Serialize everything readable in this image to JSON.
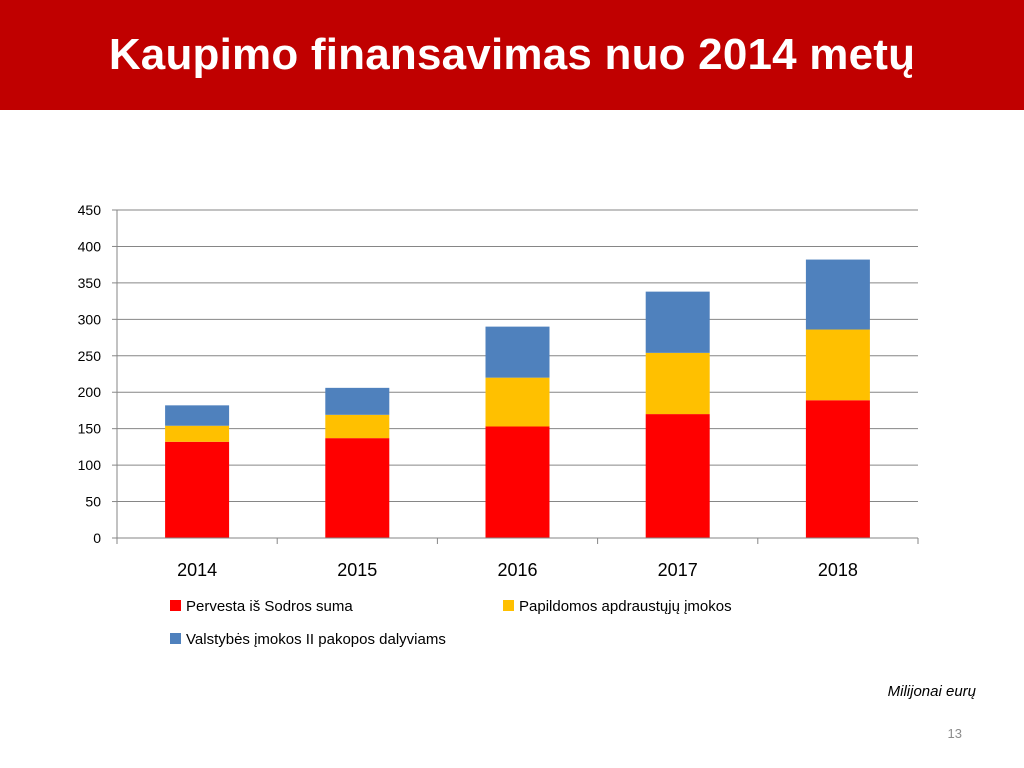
{
  "slide": {
    "title": "Kaupimo finansavimas nuo 2014 metų",
    "unit_note": "Milijonai eurų",
    "page_number": "13"
  },
  "colors": {
    "title_bar": "#c00000",
    "gridline": "#868686"
  },
  "chart_data": {
    "type": "bar",
    "stacked": true,
    "categories": [
      "2014",
      "2015",
      "2016",
      "2017",
      "2018"
    ],
    "series": [
      {
        "name": "Pervesta iš Sodros suma",
        "color": "#ff0000",
        "values": [
          132,
          137,
          153,
          170,
          189
        ]
      },
      {
        "name": "Papildomos apdraustųjų įmokos",
        "color": "#ffc000",
        "values": [
          22,
          32,
          67,
          84,
          97
        ]
      },
      {
        "name": "Valstybės įmokos II pakopos dalyviams",
        "color": "#4f81bd",
        "values": [
          28,
          37,
          70,
          84,
          96
        ]
      }
    ],
    "ylim": [
      0,
      450
    ],
    "yticks": [
      0,
      50,
      100,
      150,
      200,
      250,
      300,
      350,
      400,
      450
    ],
    "grid": true,
    "legend_position": "bottom",
    "title": "",
    "xlabel": "",
    "ylabel": ""
  }
}
